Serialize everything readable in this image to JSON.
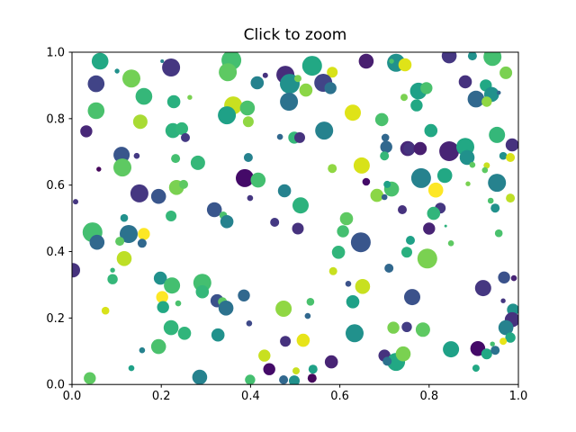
{
  "title": "Click to zoom",
  "chart_data": {
    "type": "scatter",
    "title": "Click to zoom",
    "xlabel": "",
    "ylabel": "",
    "xlim": [
      0.0,
      1.0
    ],
    "ylim": [
      0.0,
      1.0
    ],
    "x_tick_labels": [
      "0.0",
      "0.2",
      "0.4",
      "0.6",
      "0.8",
      "1.0"
    ],
    "y_tick_labels": [
      "0.0",
      "0.2",
      "0.4",
      "0.6",
      "0.8",
      "1.0"
    ],
    "grid": false,
    "legend": "none",
    "colormap": "viridis",
    "marker": "circle",
    "background": "#ffffff",
    "axes_edge_color": "#000000",
    "points": [
      [
        0.063,
        0.973,
        9.3,
        "#22a884"
      ],
      [
        0.101,
        0.943,
        2.7,
        "#21918c"
      ],
      [
        0.202,
        0.973,
        2.0,
        "#26828e"
      ],
      [
        0.222,
        0.954,
        10.0,
        "#453781"
      ],
      [
        0.054,
        0.905,
        9.3,
        "#414487"
      ],
      [
        0.133,
        0.921,
        10.0,
        "#73d055"
      ],
      [
        0.161,
        0.867,
        9.3,
        "#35b779"
      ],
      [
        0.228,
        0.851,
        7.3,
        "#2ab07f"
      ],
      [
        0.054,
        0.824,
        9.3,
        "#4ac16d"
      ],
      [
        0.153,
        0.791,
        8.0,
        "#a8db34"
      ],
      [
        0.032,
        0.762,
        6.7,
        "#482878"
      ],
      [
        0.226,
        0.764,
        8.3,
        "#2db27d"
      ],
      [
        0.246,
        0.77,
        7.0,
        "#31b57b"
      ],
      [
        0.111,
        0.691,
        9.0,
        "#39568c"
      ],
      [
        0.145,
        0.688,
        3.3,
        "#443983"
      ],
      [
        0.232,
        0.68,
        5.0,
        "#44bf70"
      ],
      [
        0.357,
        0.976,
        11.0,
        "#44bf70"
      ],
      [
        0.349,
        0.94,
        10.0,
        "#5ec962"
      ],
      [
        0.415,
        0.908,
        7.3,
        "#26828e"
      ],
      [
        0.433,
        0.93,
        3.0,
        "#46327e"
      ],
      [
        0.478,
        0.932,
        10.0,
        "#472d7b"
      ],
      [
        0.488,
        0.905,
        11.0,
        "#21918c"
      ],
      [
        0.486,
        0.851,
        10.0,
        "#2c728e"
      ],
      [
        0.264,
        0.864,
        2.7,
        "#7ad151"
      ],
      [
        0.361,
        0.84,
        10.0,
        "#c8e020"
      ],
      [
        0.393,
        0.832,
        8.3,
        "#4ac16d"
      ],
      [
        0.347,
        0.81,
        10.0,
        "#1fa187"
      ],
      [
        0.395,
        0.791,
        6.0,
        "#90d743"
      ],
      [
        0.254,
        0.743,
        5.0,
        "#443983"
      ],
      [
        0.466,
        0.745,
        3.3,
        "#31688e"
      ],
      [
        0.498,
        0.743,
        6.7,
        "#35b779"
      ],
      [
        0.395,
        0.683,
        5.0,
        "#26828e"
      ],
      [
        0.506,
        0.921,
        4.0,
        "#7ad151"
      ],
      [
        0.538,
        0.959,
        11.0,
        "#22a884"
      ],
      [
        0.659,
        0.973,
        8.3,
        "#481f70"
      ],
      [
        0.726,
        0.968,
        10.0,
        "#21918c"
      ],
      [
        0.716,
        0.973,
        2.7,
        "#4ac16d"
      ],
      [
        0.746,
        0.962,
        7.3,
        "#dfe318"
      ],
      [
        0.583,
        0.94,
        6.0,
        "#d8e219"
      ],
      [
        0.563,
        0.908,
        10.0,
        "#414487"
      ],
      [
        0.579,
        0.892,
        6.7,
        "#2c728e"
      ],
      [
        0.524,
        0.886,
        7.3,
        "#8bd646"
      ],
      [
        0.629,
        0.818,
        9.0,
        "#dfe318"
      ],
      [
        0.694,
        0.797,
        7.3,
        "#4ac16d"
      ],
      [
        0.565,
        0.764,
        10.0,
        "#26828e"
      ],
      [
        0.51,
        0.743,
        6.0,
        "#46337e"
      ],
      [
        0.702,
        0.743,
        4.3,
        "#31688e"
      ],
      [
        0.704,
        0.715,
        6.7,
        "#31688e"
      ],
      [
        0.752,
        0.71,
        8.3,
        "#482878"
      ],
      [
        0.7,
        0.688,
        5.0,
        "#35b779"
      ],
      [
        0.649,
        0.659,
        9.0,
        "#d8e219"
      ],
      [
        0.845,
        0.989,
        8.3,
        "#453781"
      ],
      [
        0.897,
        0.989,
        5.0,
        "#21918c"
      ],
      [
        0.942,
        0.986,
        10.0,
        "#44bf70"
      ],
      [
        0.972,
        0.938,
        7.0,
        "#7ad151"
      ],
      [
        0.881,
        0.911,
        7.3,
        "#46327e"
      ],
      [
        0.744,
        0.864,
        4.0,
        "#7ad151"
      ],
      [
        0.776,
        0.883,
        9.3,
        "#1fa187"
      ],
      [
        0.794,
        0.892,
        6.7,
        "#4ac16d"
      ],
      [
        0.772,
        0.84,
        6.7,
        "#22a884"
      ],
      [
        0.927,
        0.9,
        6.7,
        "#22a884"
      ],
      [
        0.94,
        0.873,
        8.3,
        "#21918c"
      ],
      [
        0.905,
        0.859,
        9.3,
        "#31688e"
      ],
      [
        0.956,
        0.878,
        2.3,
        "#31688e"
      ],
      [
        0.929,
        0.851,
        5.7,
        "#90d743"
      ],
      [
        0.804,
        0.764,
        7.3,
        "#22a884"
      ],
      [
        0.952,
        0.751,
        9.0,
        "#35b779"
      ],
      [
        0.986,
        0.721,
        7.3,
        "#46327e"
      ],
      [
        0.966,
        0.688,
        4.3,
        "#21918c"
      ],
      [
        0.982,
        0.683,
        5.0,
        "#d8e219"
      ],
      [
        0.756,
        0.71,
        6.7,
        "#46337e"
      ],
      [
        0.78,
        0.71,
        7.3,
        "#481f70"
      ],
      [
        0.845,
        0.702,
        11.0,
        "#482475"
      ],
      [
        0.881,
        0.715,
        10.0,
        "#22a884"
      ],
      [
        0.885,
        0.683,
        8.3,
        "#21918c"
      ],
      [
        0.929,
        0.659,
        3.5,
        "#c8e020"
      ],
      [
        0.06,
        0.648,
        2.7,
        "#46085c"
      ],
      [
        0.113,
        0.653,
        10.0,
        "#5ec962"
      ],
      [
        0.234,
        0.593,
        8.3,
        "#7ad151"
      ],
      [
        0.151,
        0.575,
        10.0,
        "#453781"
      ],
      [
        0.194,
        0.566,
        8.3,
        "#39568c"
      ],
      [
        0.008,
        0.55,
        3.0,
        "#453781"
      ],
      [
        0.222,
        0.507,
        6.0,
        "#35b779"
      ],
      [
        0.117,
        0.501,
        4.3,
        "#21918c"
      ],
      [
        0.046,
        0.458,
        11.0,
        "#44bf70"
      ],
      [
        0.127,
        0.453,
        10.0,
        "#2c728e"
      ],
      [
        0.161,
        0.453,
        6.7,
        "#fde725"
      ],
      [
        0.107,
        0.431,
        5.0,
        "#5ec962"
      ],
      [
        0.056,
        0.428,
        8.3,
        "#31688e"
      ],
      [
        0.157,
        0.425,
        5.0,
        "#31688e"
      ],
      [
        0.117,
        0.379,
        8.3,
        "#bddf26"
      ],
      [
        0.002,
        0.344,
        8.0,
        "#46337e"
      ],
      [
        0.091,
        0.344,
        2.7,
        "#35b779"
      ],
      [
        0.282,
        0.667,
        8.0,
        "#35b779"
      ],
      [
        0.25,
        0.602,
        5.0,
        "#5ec962"
      ],
      [
        0.387,
        0.621,
        10.0,
        "#440a68"
      ],
      [
        0.417,
        0.615,
        8.3,
        "#44bf70"
      ],
      [
        0.476,
        0.583,
        7.3,
        "#26828e"
      ],
      [
        0.399,
        0.561,
        3.3,
        "#453781"
      ],
      [
        0.512,
        0.539,
        9.0,
        "#2db27d"
      ],
      [
        0.319,
        0.526,
        8.3,
        "#39568c"
      ],
      [
        0.339,
        0.509,
        4.3,
        "#4ac16d"
      ],
      [
        0.347,
        0.49,
        7.3,
        "#26828e"
      ],
      [
        0.454,
        0.488,
        5.0,
        "#443983"
      ],
      [
        0.506,
        0.469,
        6.5,
        "#46327e"
      ],
      [
        0.583,
        0.65,
        5.0,
        "#90d743"
      ],
      [
        0.659,
        0.61,
        4.3,
        "#440a68"
      ],
      [
        0.716,
        0.588,
        8.3,
        "#4ac16d"
      ],
      [
        0.706,
        0.602,
        4.0,
        "#1fa187"
      ],
      [
        0.683,
        0.569,
        7.3,
        "#8bd646"
      ],
      [
        0.7,
        0.564,
        3.3,
        "#355f8d"
      ],
      [
        0.74,
        0.526,
        5.0,
        "#46327e"
      ],
      [
        0.615,
        0.499,
        7.3,
        "#5ec962"
      ],
      [
        0.607,
        0.461,
        6.7,
        "#44bf70"
      ],
      [
        0.647,
        0.428,
        11.0,
        "#39568c"
      ],
      [
        0.597,
        0.398,
        7.3,
        "#31b57b"
      ],
      [
        0.71,
        0.35,
        5.0,
        "#31688e"
      ],
      [
        0.585,
        0.341,
        4.5,
        "#c8e020"
      ],
      [
        0.782,
        0.621,
        11.0,
        "#26828e"
      ],
      [
        0.835,
        0.629,
        8.3,
        "#22a884"
      ],
      [
        0.897,
        0.661,
        3.3,
        "#5ec962"
      ],
      [
        0.925,
        0.645,
        3.3,
        "#5ec962"
      ],
      [
        0.815,
        0.585,
        8.3,
        "#fde725"
      ],
      [
        0.887,
        0.604,
        2.7,
        "#7ad151"
      ],
      [
        0.952,
        0.607,
        10.0,
        "#26828e"
      ],
      [
        0.982,
        0.561,
        5.0,
        "#bddf26"
      ],
      [
        0.825,
        0.531,
        6.0,
        "#453781"
      ],
      [
        0.81,
        0.515,
        7.3,
        "#31b57b"
      ],
      [
        0.938,
        0.553,
        3.3,
        "#4ac16d"
      ],
      [
        0.948,
        0.531,
        5.0,
        "#21918c"
      ],
      [
        0.8,
        0.469,
        6.7,
        "#482475"
      ],
      [
        0.837,
        0.477,
        1.5,
        "#2db27d"
      ],
      [
        0.956,
        0.455,
        4.3,
        "#4ac16d"
      ],
      [
        0.758,
        0.434,
        5.0,
        "#1fa187"
      ],
      [
        0.849,
        0.425,
        3.3,
        "#5ec962"
      ],
      [
        0.75,
        0.398,
        6.0,
        "#2ab07f"
      ],
      [
        0.796,
        0.379,
        11.0,
        "#7ad151"
      ],
      [
        0.091,
        0.317,
        5.7,
        "#35b779"
      ],
      [
        0.198,
        0.32,
        7.3,
        "#21918c"
      ],
      [
        0.224,
        0.298,
        9.0,
        "#44bf70"
      ],
      [
        0.202,
        0.263,
        6.7,
        "#fde725"
      ],
      [
        0.204,
        0.233,
        6.7,
        "#22a884"
      ],
      [
        0.238,
        0.244,
        3.3,
        "#4ac16d"
      ],
      [
        0.075,
        0.222,
        4.3,
        "#d8e219"
      ],
      [
        0.222,
        0.171,
        8.3,
        "#31b57b"
      ],
      [
        0.194,
        0.114,
        8.3,
        "#4ac16d"
      ],
      [
        0.157,
        0.103,
        3.3,
        "#26828e"
      ],
      [
        0.133,
        0.049,
        3.3,
        "#1fa187"
      ],
      [
        0.04,
        0.019,
        6.7,
        "#5ec962"
      ],
      [
        0.292,
        0.306,
        10.0,
        "#44bf70"
      ],
      [
        0.292,
        0.279,
        7.3,
        "#35b779"
      ],
      [
        0.325,
        0.252,
        7.3,
        "#3b528b"
      ],
      [
        0.337,
        0.249,
        5.0,
        "#5ec962"
      ],
      [
        0.345,
        0.23,
        8.3,
        "#2c728e"
      ],
      [
        0.385,
        0.268,
        6.7,
        "#31688e"
      ],
      [
        0.397,
        0.184,
        3.3,
        "#3e4989"
      ],
      [
        0.474,
        0.228,
        9.0,
        "#90d743"
      ],
      [
        0.252,
        0.154,
        7.3,
        "#31b57b"
      ],
      [
        0.327,
        0.149,
        7.3,
        "#21918c"
      ],
      [
        0.478,
        0.13,
        6.0,
        "#46327e"
      ],
      [
        0.431,
        0.087,
        6.7,
        "#c8e020"
      ],
      [
        0.442,
        0.046,
        6.7,
        "#440a68"
      ],
      [
        0.286,
        0.022,
        8.3,
        "#26828e"
      ],
      [
        0.399,
        0.014,
        5.7,
        "#44bf70"
      ],
      [
        0.474,
        0.014,
        5.0,
        "#31688e"
      ],
      [
        0.498,
        0.011,
        6.0,
        "#21918c"
      ],
      [
        0.619,
        0.303,
        3.3,
        "#3b528b"
      ],
      [
        0.651,
        0.295,
        8.3,
        "#c8e020"
      ],
      [
        0.629,
        0.249,
        7.3,
        "#1fa187"
      ],
      [
        0.534,
        0.249,
        4.3,
        "#4ac16d"
      ],
      [
        0.528,
        0.206,
        3.3,
        "#31688e"
      ],
      [
        0.762,
        0.263,
        9.0,
        "#3b528b"
      ],
      [
        0.633,
        0.154,
        10.0,
        "#21918c"
      ],
      [
        0.72,
        0.171,
        6.7,
        "#7ad151"
      ],
      [
        0.75,
        0.173,
        5.7,
        "#433d84"
      ],
      [
        0.786,
        0.165,
        8.0,
        "#5ec962"
      ],
      [
        0.518,
        0.133,
        7.3,
        "#e7e419"
      ],
      [
        0.581,
        0.068,
        7.3,
        "#482475"
      ],
      [
        0.7,
        0.087,
        6.7,
        "#46327e"
      ],
      [
        0.726,
        0.068,
        10.0,
        "#22a884"
      ],
      [
        0.742,
        0.092,
        8.3,
        "#7ad151"
      ],
      [
        0.706,
        0.07,
        5.0,
        "#2c728e"
      ],
      [
        0.54,
        0.046,
        5.0,
        "#1fa187"
      ],
      [
        0.538,
        0.019,
        5.0,
        "#46085c"
      ],
      [
        0.502,
        0.041,
        4.0,
        "#c8e020"
      ],
      [
        0.968,
        0.322,
        6.7,
        "#3b528b"
      ],
      [
        0.99,
        0.32,
        3.3,
        "#482475"
      ],
      [
        0.921,
        0.29,
        9.0,
        "#453781"
      ],
      [
        0.966,
        0.252,
        2.7,
        "#453781"
      ],
      [
        0.988,
        0.225,
        6.7,
        "#21918c"
      ],
      [
        0.986,
        0.195,
        8.3,
        "#46327e"
      ],
      [
        0.972,
        0.171,
        8.3,
        "#26828e"
      ],
      [
        0.982,
        0.141,
        5.7,
        "#22a884"
      ],
      [
        0.966,
        0.13,
        4.0,
        "#e7e419"
      ],
      [
        0.849,
        0.106,
        9.0,
        "#1fa187"
      ],
      [
        0.909,
        0.108,
        8.3,
        "#440a68"
      ],
      [
        0.929,
        0.092,
        6.0,
        "#22a884"
      ],
      [
        0.948,
        0.103,
        5.0,
        "#2c728e"
      ],
      [
        0.942,
        0.122,
        2.7,
        "#44bf70"
      ],
      [
        0.905,
        0.049,
        4.0,
        "#22a884"
      ]
    ]
  }
}
